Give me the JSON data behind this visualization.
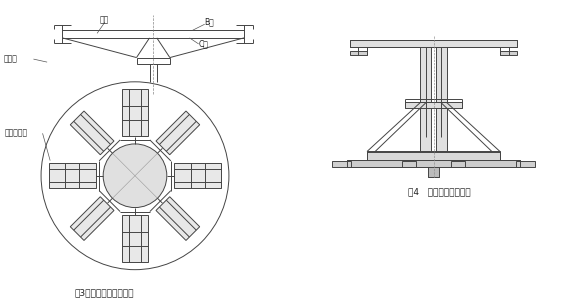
{
  "bg_color": "#ffffff",
  "line_color": "#444444",
  "label_color": "#222222",
  "fig3_caption": "图3灌包架的分料箱部分",
  "fig4_caption": "图4   灌包架制作完成图",
  "label_fazlan": "法兰",
  "label_fangfazlan": "方法兰",
  "label_bface": "B面",
  "label_cface": "C面",
  "label_bafen": "八个分料口",
  "font_size_label": 5.5,
  "font_size_caption": 6.5
}
